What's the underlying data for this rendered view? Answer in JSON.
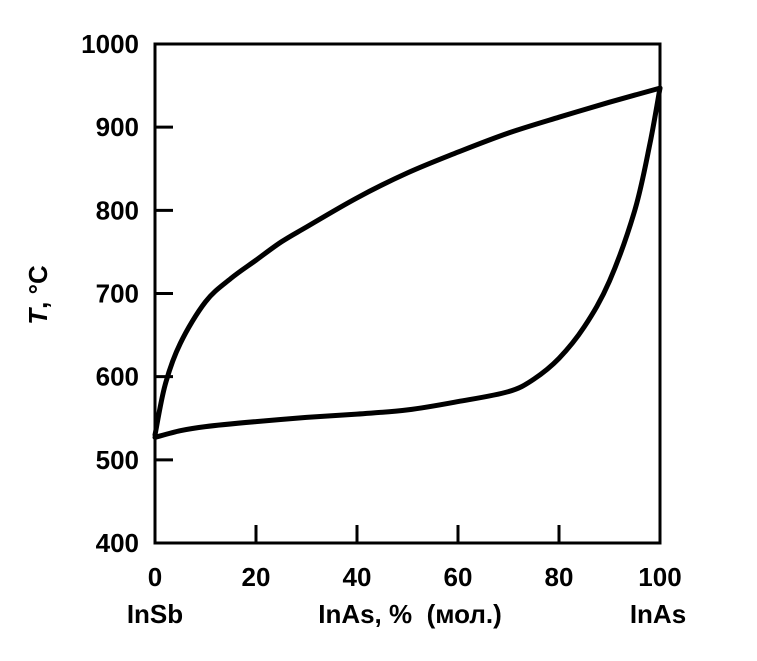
{
  "chart_data": {
    "type": "line",
    "title": "",
    "xlabel": "InAs, %  (мол.)",
    "ylabel": "T, °C",
    "ylabel_italic_part": "T",
    "ylabel_rest": ", °C",
    "xlim": [
      0,
      100
    ],
    "ylim": [
      400,
      1000
    ],
    "x_ticks": [
      0,
      20,
      40,
      60,
      80,
      100
    ],
    "x_tick_labels": [
      "0",
      "20",
      "40",
      "60",
      "80",
      "100"
    ],
    "y_ticks": [
      400,
      500,
      600,
      700,
      800,
      900,
      1000
    ],
    "y_tick_labels": [
      "400",
      "500",
      "600",
      "700",
      "800",
      "900",
      "1000"
    ],
    "x_end_labels": {
      "left": "InSb",
      "right": "InAs"
    },
    "grid": false,
    "series": [
      {
        "x": [
          0,
          2,
          5,
          10,
          15,
          20,
          25,
          30,
          40,
          50,
          60,
          70,
          80,
          90,
          100
        ],
        "y": [
          530,
          590,
          640,
          690,
          718,
          740,
          762,
          780,
          815,
          845,
          870,
          893,
          912,
          930,
          947
        ]
      },
      {
        "x": [
          0,
          5,
          10,
          20,
          30,
          40,
          50,
          60,
          70,
          75,
          80,
          85,
          90,
          95,
          98,
          100
        ],
        "y": [
          527,
          535,
          540,
          546,
          551,
          555,
          560,
          570,
          582,
          597,
          622,
          660,
          715,
          800,
          880,
          947
        ]
      }
    ]
  }
}
